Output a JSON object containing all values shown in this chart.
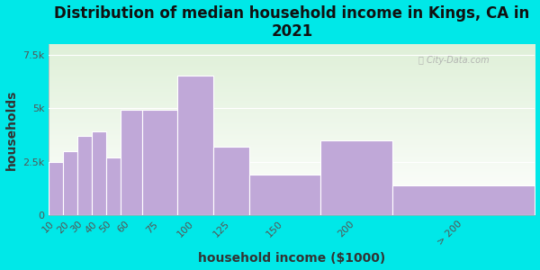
{
  "title": "Distribution of median household income in Kings, CA in\n2021",
  "xlabel": "household income ($1000)",
  "ylabel": "households",
  "bar_labels": [
    "10",
    "20",
    "30",
    "40",
    "50",
    "60",
    "75",
    "100",
    "125",
    "150",
    "200",
    "> 200"
  ],
  "bar_values": [
    2500,
    3000,
    3700,
    3900,
    2700,
    4900,
    4900,
    6500,
    3200,
    1900,
    3500,
    1400
  ],
  "bar_left_edges": [
    10,
    20,
    30,
    40,
    50,
    60,
    75,
    100,
    125,
    150,
    200,
    250
  ],
  "bar_widths": [
    10,
    10,
    10,
    10,
    10,
    15,
    25,
    25,
    25,
    50,
    50,
    100
  ],
  "bar_color": "#c0a8d8",
  "ylim": [
    0,
    8000
  ],
  "yticks": [
    0,
    2500,
    5000,
    7500
  ],
  "ytick_labels": [
    "0",
    "2.5k",
    "5k",
    "7.5k"
  ],
  "bg_color": "#00e8e8",
  "plot_bg_topleft": "#dff0d8",
  "plot_bg_bottomright": "#ffffff",
  "title_fontsize": 12,
  "axis_label_fontsize": 10,
  "tick_fontsize": 8,
  "watermark": "City-Data.com",
  "xlim_left": 10,
  "xlim_right": 350
}
